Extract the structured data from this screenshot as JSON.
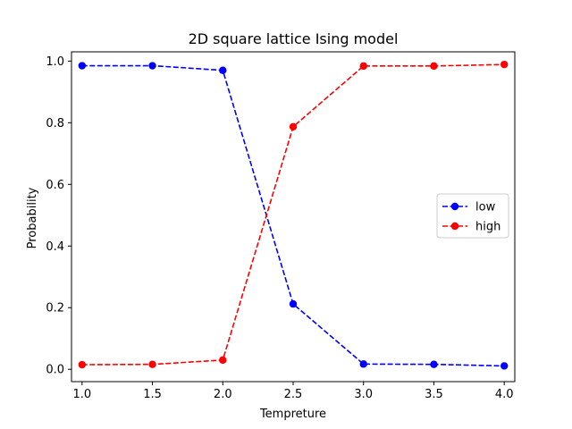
{
  "chart_data": {
    "type": "line",
    "title": "2D square lattice Ising model",
    "xlabel": "Tempreture",
    "ylabel": "Probability",
    "x": [
      1.0,
      1.5,
      2.0,
      2.5,
      3.0,
      3.5,
      4.0
    ],
    "xlim": [
      0.925,
      4.075
    ],
    "ylim": [
      -0.04,
      1.03
    ],
    "xticks": [
      1.0,
      1.5,
      2.0,
      2.5,
      3.0,
      3.5,
      4.0
    ],
    "xtick_labels": [
      "1.0",
      "1.5",
      "2.0",
      "2.5",
      "3.0",
      "3.5",
      "4.0"
    ],
    "yticks": [
      0.0,
      0.2,
      0.4,
      0.6,
      0.8,
      1.0
    ],
    "ytick_labels": [
      "0.0",
      "0.2",
      "0.4",
      "0.6",
      "0.8",
      "1.0"
    ],
    "grid": false,
    "legend_position": "center-right",
    "series": [
      {
        "name": "low",
        "color": "#0000ff",
        "linestyle": "dashed",
        "marker": "circle",
        "values": [
          0.985,
          0.985,
          0.97,
          0.212,
          0.017,
          0.016,
          0.011
        ]
      },
      {
        "name": "high",
        "color": "#ff0000",
        "linestyle": "dashed",
        "marker": "circle",
        "values": [
          0.015,
          0.016,
          0.03,
          0.787,
          0.984,
          0.984,
          0.989
        ]
      }
    ]
  }
}
